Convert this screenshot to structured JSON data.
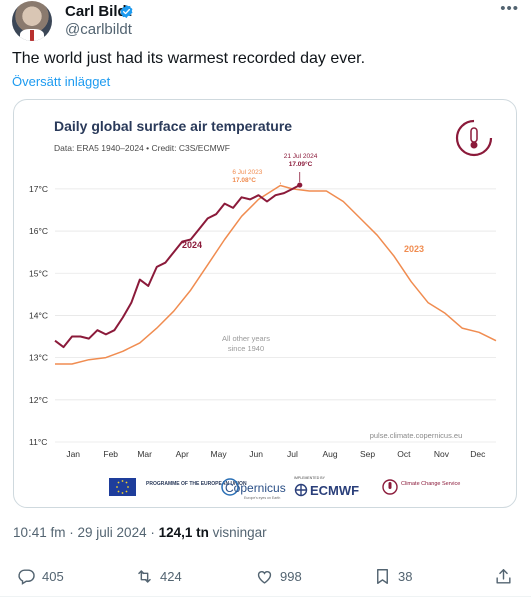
{
  "post": {
    "author_name": "Carl Bildt",
    "author_handle": "@carlbildt",
    "more_glyph": "•••",
    "text": "The world just had its warmest recorded day ever.",
    "translate_label": "Översätt inlägget",
    "timestamp": "10:41 fm · 29 juli 2024 ·",
    "views_count": "124,1 tn",
    "views_label": "visningar"
  },
  "actions": {
    "replies": "405",
    "reposts": "424",
    "likes": "998",
    "bookmarks": "38"
  },
  "colors": {
    "accent": "#1d9bf0",
    "series_2024": "#8b1a3a",
    "series_2023": "#f08c50",
    "other_years": "#cfcfcf"
  },
  "chart_data": {
    "type": "line",
    "title": "Daily global surface air temperature",
    "subtitle": "Data: ERA5 1940–2024 • Credit: C3S/ECMWF",
    "ylabel": "",
    "xlabel": "",
    "ylim": [
      11,
      17.4
    ],
    "y_ticks": [
      "11°C",
      "12°C",
      "13°C",
      "14°C",
      "15°C",
      "16°C",
      "17°C"
    ],
    "y_tick_values": [
      11,
      12,
      13,
      14,
      15,
      16,
      17
    ],
    "x_ticks": [
      "Jan",
      "Feb",
      "Mar",
      "Apr",
      "May",
      "Jun",
      "Jul",
      "Aug",
      "Sep",
      "Oct",
      "Nov",
      "Dec"
    ],
    "grid": true,
    "series": [
      {
        "name": "2024",
        "x": [
          1,
          8,
          15,
          22,
          29,
          36,
          43,
          50,
          57,
          64,
          71,
          78,
          85,
          92,
          99,
          106,
          113,
          120,
          127,
          134,
          141,
          148,
          155,
          162,
          169,
          176,
          183,
          190,
          197,
          203
        ],
        "values": [
          13.4,
          13.25,
          13.5,
          13.5,
          13.45,
          13.65,
          13.55,
          13.65,
          13.95,
          14.3,
          14.85,
          14.7,
          15.15,
          15.25,
          15.5,
          15.75,
          15.8,
          16.05,
          16.3,
          16.4,
          16.65,
          16.55,
          16.8,
          16.75,
          16.85,
          16.7,
          16.85,
          16.9,
          17.0,
          17.09
        ]
      },
      {
        "name": "2023",
        "x": [
          1,
          15,
          29,
          43,
          57,
          71,
          85,
          99,
          113,
          127,
          141,
          155,
          169,
          187,
          197,
          211,
          225,
          239,
          253,
          267,
          281,
          295,
          309,
          323,
          337,
          351,
          365
        ],
        "values": [
          12.85,
          12.85,
          12.95,
          13.0,
          13.15,
          13.35,
          13.7,
          14.1,
          14.6,
          15.2,
          15.8,
          16.35,
          16.75,
          17.08,
          17.0,
          16.95,
          16.95,
          16.7,
          16.3,
          15.9,
          15.4,
          14.8,
          14.3,
          14.05,
          13.7,
          13.6,
          13.4
        ]
      }
    ],
    "other_years_label": "All other years since 1940",
    "annotations": [
      {
        "label_date": "6 Jul 2023",
        "label_value": "17.08°C",
        "x": 187,
        "y": 17.08
      },
      {
        "label_date": "21 Jul 2024",
        "label_value": "17.09°C",
        "x": 203,
        "y": 17.09
      }
    ],
    "source_note": "pulse.climate.copernicus.eu"
  },
  "logos": {
    "eu": "PROGRAMME OF THE EUROPEAN UNION",
    "copernicus": "Copernicus",
    "copernicus_sub": "Europe's eyes on Earth",
    "ecmwf_pre": "IMPLEMENTED BY",
    "ecmwf": "ECMWF",
    "c3s": "Climate Change Service"
  }
}
